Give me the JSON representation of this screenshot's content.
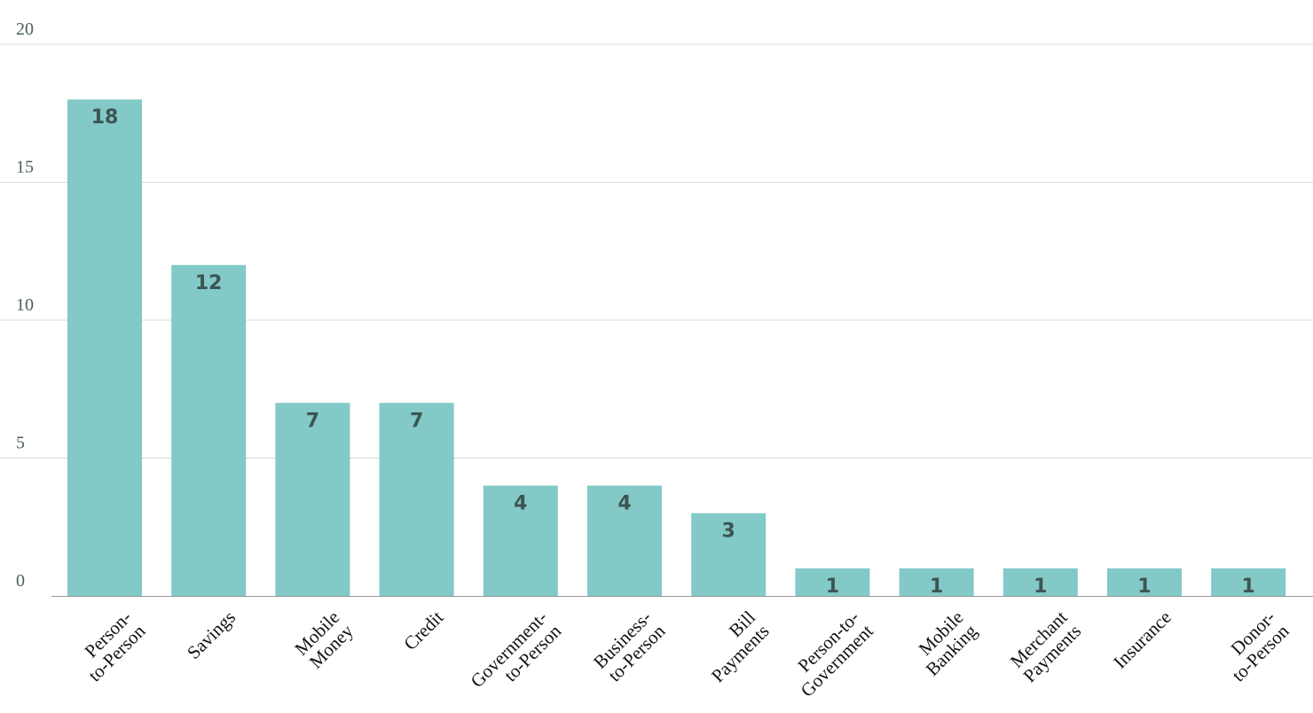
{
  "chart_data": {
    "type": "bar",
    "categories": [
      [
        "Person-",
        "to-Person"
      ],
      [
        "Savings"
      ],
      [
        "Mobile",
        "Money"
      ],
      [
        "Credit"
      ],
      [
        "Government-",
        "to-Person"
      ],
      [
        "Business-",
        "to-Person"
      ],
      [
        "Bill",
        "Payments"
      ],
      [
        "Person-to-",
        "Government"
      ],
      [
        "Mobile",
        "Banking"
      ],
      [
        "Merchant",
        "Payments"
      ],
      [
        "Insurance"
      ],
      [
        "Donor-",
        "to-Person"
      ]
    ],
    "values": [
      18,
      12,
      7,
      7,
      4,
      4,
      3,
      1,
      1,
      1,
      1,
      1
    ],
    "ylim": [
      0,
      20
    ],
    "yticks": [
      "0",
      "5",
      "10",
      "15",
      "20"
    ],
    "grid": true,
    "data_labels": true,
    "bar_color": "#82c9c7",
    "label_color": "#3d5552"
  }
}
